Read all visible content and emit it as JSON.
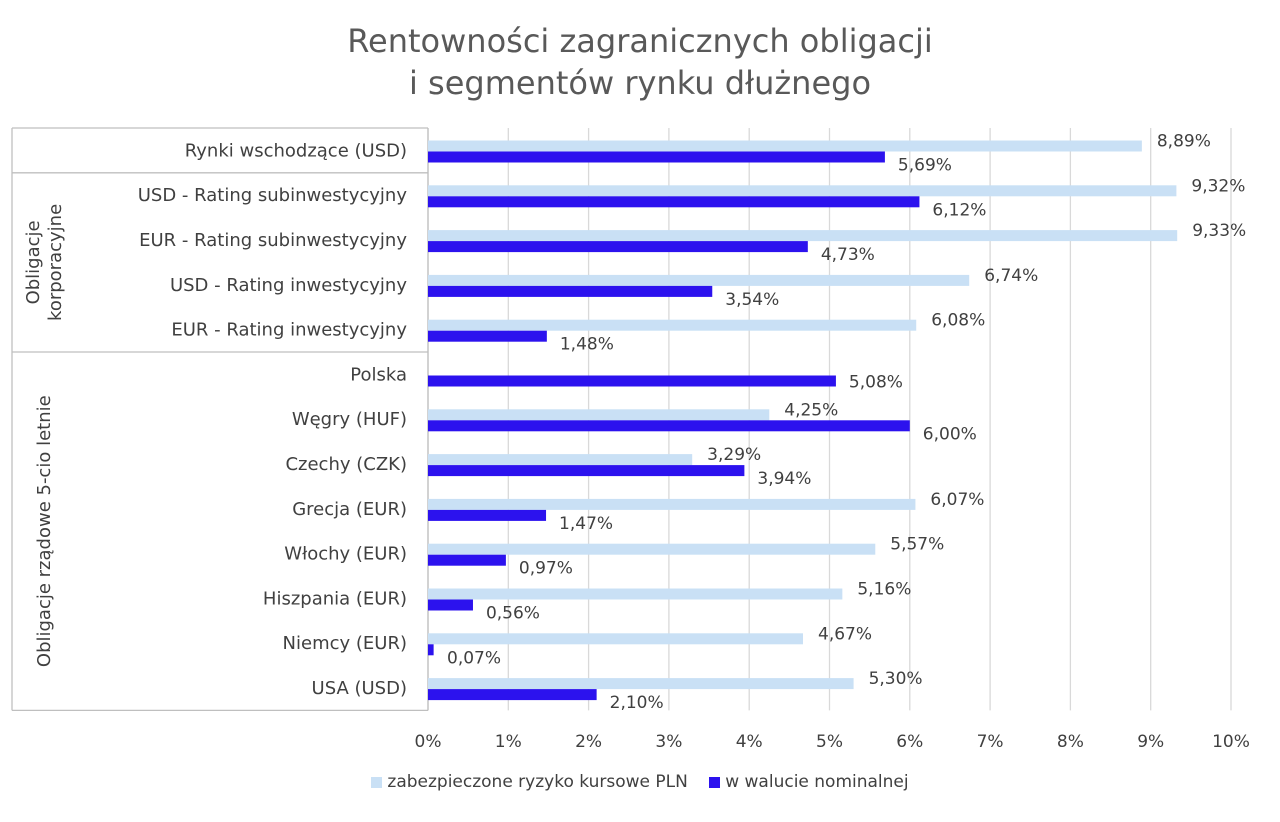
{
  "chart_data": {
    "type": "bar",
    "orientation": "horizontal",
    "title_line1": "Rentowności zagranicznych obligacji",
    "title_line2": "i segmentów rynku dłużnego",
    "categories": [
      "Rynki wschodzące (USD)",
      "USD - Rating subinwestycyjny",
      "EUR - Rating subinwestycyjny",
      "USD - Rating inwestycyjny",
      "EUR - Rating inwestycyjny",
      "Polska",
      "Węgry (HUF)",
      "Czechy (CZK)",
      "Grecja (EUR)",
      "Włochy (EUR)",
      "Hiszpania (EUR)",
      "Niemcy (EUR)",
      "USA (USD)"
    ],
    "groups": [
      {
        "label": "",
        "start": 0,
        "end": 0
      },
      {
        "label": "Obligacje korporacyjne",
        "lines": [
          "Obligacje",
          "korporacyjne"
        ],
        "start": 1,
        "end": 4
      },
      {
        "label": "Obligacje rządowe 5-cio letnie",
        "lines": [
          "Obligacje rządowe 5-cio letnie"
        ],
        "start": 5,
        "end": 12
      }
    ],
    "series": [
      {
        "name": "zabezpieczone ryzyko kursowe PLN",
        "color": "#c9e0f5",
        "values": [
          8.89,
          9.32,
          9.33,
          6.74,
          6.08,
          null,
          4.25,
          3.29,
          6.07,
          5.57,
          5.16,
          4.67,
          5.3
        ],
        "labels": [
          "8,89%",
          "9,32%",
          "9,33%",
          "6,74%",
          "6,08%",
          "",
          "4,25%",
          "3,29%",
          "6,07%",
          "5,57%",
          "5,16%",
          "4,67%",
          "5,30%"
        ]
      },
      {
        "name": "w walucie nominalnej",
        "color": "#2c12ee",
        "values": [
          5.69,
          6.12,
          4.73,
          3.54,
          1.48,
          5.08,
          6.0,
          3.94,
          1.47,
          0.97,
          0.56,
          0.07,
          2.1
        ],
        "labels": [
          "5,69%",
          "6,12%",
          "4,73%",
          "3,54%",
          "1,48%",
          "5,08%",
          "6,00%",
          "3,94%",
          "1,47%",
          "0,97%",
          "0,56%",
          "0,07%",
          "2,10%"
        ]
      }
    ],
    "xlim": [
      0,
      10
    ],
    "xticks": [
      0,
      1,
      2,
      3,
      4,
      5,
      6,
      7,
      8,
      9,
      10
    ],
    "xtick_labels": [
      "0%",
      "1%",
      "2%",
      "3%",
      "4%",
      "5%",
      "6%",
      "7%",
      "8%",
      "9%",
      "10%"
    ],
    "grid": true,
    "legend": "bottom"
  }
}
